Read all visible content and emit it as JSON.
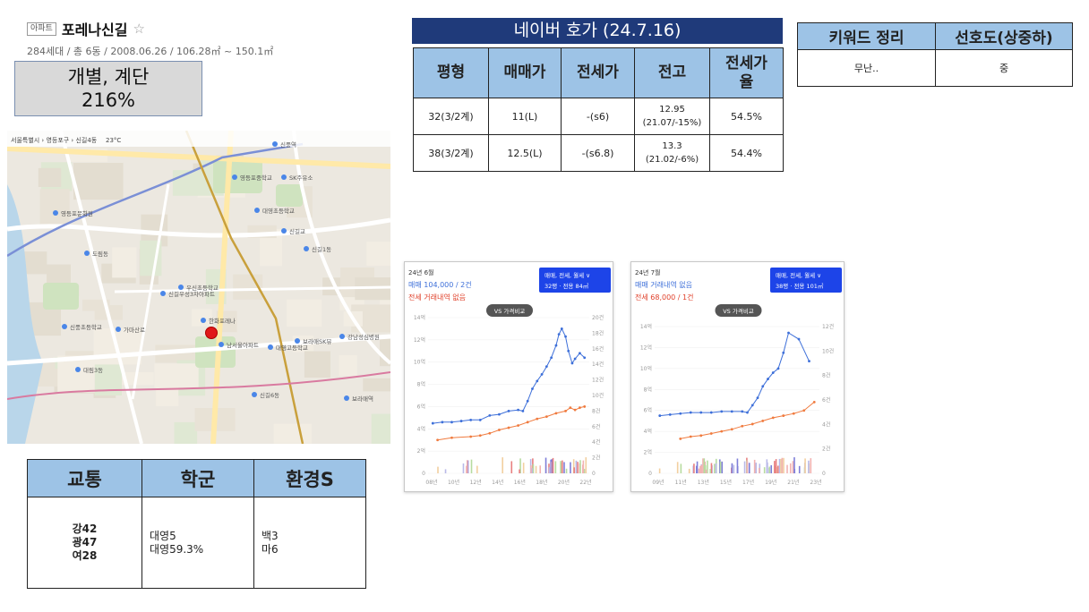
{
  "header": {
    "badge": "아파트",
    "name": "포레나신길",
    "star": "☆",
    "meta": "284세대 / 총 6동 / 2008.06.26 / 106.28㎡ ~ 150.1㎡"
  },
  "ratio": {
    "line1": "개별, 계단",
    "line2": "216%"
  },
  "map": {
    "breadcrumb": "서울특별시 › 영등포구 › 신길4동",
    "weather": "23°C",
    "labels": [
      "신풍역",
      "영등포중학교",
      "SK주유소",
      "대영초등학교",
      "대영고등학교",
      "신길6동",
      "보라매역",
      "영등포문화원",
      "신길교",
      "도림동",
      "신길1동",
      "신풍초등학교",
      "우신초등학교",
      "가마산로",
      "신길우성3차아파트",
      "한화포레나",
      "남서울아파트",
      "대림3동",
      "강남성심병원",
      "보라매SK뷰"
    ]
  },
  "bottom_table": {
    "headers": [
      "교통",
      "학군",
      "환경S"
    ],
    "col1": [
      "강42",
      "광47",
      "여28"
    ],
    "col2": [
      "대영5",
      "대영59.3%"
    ],
    "col3": [
      "백3",
      "마6"
    ]
  },
  "naver": {
    "title": "네이버 호가 (24.7.16)",
    "headers": [
      "평형",
      "매매가",
      "전세가",
      "전고",
      "전세가율"
    ],
    "rows": [
      {
        "type": "32(3/2계)",
        "sale": "11(L)",
        "jeonse": "-(s6)",
        "peak1": "12.95",
        "peak2": "(21.07/-15%)",
        "rate": "54.5%"
      },
      {
        "type": "38(3/2계)",
        "sale": "12.5(L)",
        "jeonse": "-(s6.8)",
        "peak1": "13.3",
        "peak2": "(21.02/-6%)",
        "rate": "54.4%"
      }
    ]
  },
  "keywords": {
    "headers": [
      "키워드 정리",
      "선호도(상중하)"
    ],
    "row": [
      "무난..",
      "중"
    ]
  },
  "colors": {
    "header_fill": "#9dc3e6",
    "title_fill": "#1f3a7a",
    "sale_line": "#3d6fd9",
    "jeonse_line": "#f07b3f",
    "badge": "#1d44e8"
  },
  "chart_data": [
    {
      "type": "line",
      "header": "24년 6월",
      "sale_text": "매매 104,000 / 2건",
      "jeonse_text": "전세 거래내역 없음",
      "filter_label": "매매, 전세, 월세 ∨",
      "pyeong_label": "32평 · 전용 84㎡",
      "compare_button": "VS 가격비교",
      "x_ticks": [
        "08년",
        "10년",
        "12년",
        "14년",
        "16년",
        "18년",
        "20년",
        "22년"
      ],
      "y_left_ticks": [
        "0",
        "2억",
        "4억",
        "6억",
        "8억",
        "10억",
        "12억",
        "14억"
      ],
      "y_right_ticks": [
        "0",
        "2건",
        "4건",
        "6건",
        "8건",
        "10건",
        "12건",
        "14건",
        "16건",
        "18건",
        "20건"
      ],
      "xlim": [
        2007.5,
        2024.5
      ],
      "ylim": [
        0,
        14
      ],
      "series": [
        {
          "name": "매매",
          "x": [
            2008,
            2009,
            2010,
            2011,
            2012,
            2013,
            2014,
            2015,
            2016,
            2017,
            2017.5,
            2018,
            2018.5,
            2019,
            2019.5,
            2020,
            2020.5,
            2021,
            2021.3,
            2021.6,
            2022,
            2022.3,
            2022.7,
            2023,
            2023.5,
            2024
          ],
          "y": [
            4.5,
            4.6,
            4.6,
            4.7,
            4.8,
            4.8,
            5.2,
            5.3,
            5.6,
            5.7,
            5.6,
            6.5,
            7.6,
            8.3,
            8.9,
            9.6,
            10.4,
            11.5,
            12.5,
            13.0,
            12.3,
            11.0,
            9.9,
            10.3,
            10.8,
            10.4
          ]
        },
        {
          "name": "전세",
          "x": [
            2008.5,
            2010,
            2012,
            2013,
            2014,
            2015,
            2016,
            2017,
            2018,
            2019,
            2020,
            2021,
            2022,
            2022.5,
            2023,
            2023.5,
            2024
          ],
          "y": [
            3.0,
            3.2,
            3.3,
            3.4,
            3.6,
            3.9,
            4.1,
            4.3,
            4.6,
            4.9,
            5.1,
            5.4,
            5.6,
            5.9,
            5.7,
            5.9,
            6.0
          ]
        }
      ]
    },
    {
      "type": "line",
      "header": "24년 7월",
      "sale_text": "매매 거래내역 없음",
      "jeonse_text": "전세 68,000 / 1건",
      "filter_label": "매매, 전세, 월세 ∨",
      "pyeong_label": "38평 · 전용 101㎡",
      "compare_button": "VS 가격비교",
      "x_ticks": [
        "09년",
        "11년",
        "13년",
        "15년",
        "17년",
        "19년",
        "21년",
        "23년"
      ],
      "y_left_ticks": [
        "0",
        "2억",
        "4억",
        "6억",
        "8억",
        "10억",
        "12억",
        "14억"
      ],
      "y_right_ticks": [
        "0",
        "2건",
        "4건",
        "6건",
        "8건",
        "10건",
        "12건"
      ],
      "xlim": [
        2008.5,
        2024.5
      ],
      "ylim": [
        0,
        14
      ],
      "series": [
        {
          "name": "매매",
          "x": [
            2009,
            2010,
            2011,
            2012,
            2013,
            2014,
            2015,
            2016,
            2017,
            2017.5,
            2018,
            2018.5,
            2019,
            2019.5,
            2020,
            2020.5,
            2021,
            2021.5,
            2022.5,
            2023.5
          ],
          "y": [
            5.5,
            5.6,
            5.7,
            5.8,
            5.8,
            5.8,
            5.9,
            5.9,
            5.9,
            5.8,
            6.5,
            7.2,
            8.3,
            9.0,
            9.6,
            10.0,
            11.5,
            13.4,
            12.8,
            10.7
          ]
        },
        {
          "name": "전세",
          "x": [
            2011,
            2012,
            2013,
            2014,
            2015,
            2016,
            2017,
            2018,
            2019,
            2020,
            2021,
            2022,
            2023,
            2024
          ],
          "y": [
            3.3,
            3.5,
            3.6,
            3.8,
            4.0,
            4.2,
            4.5,
            4.7,
            5.0,
            5.3,
            5.5,
            5.7,
            6.0,
            6.8
          ]
        }
      ]
    }
  ]
}
